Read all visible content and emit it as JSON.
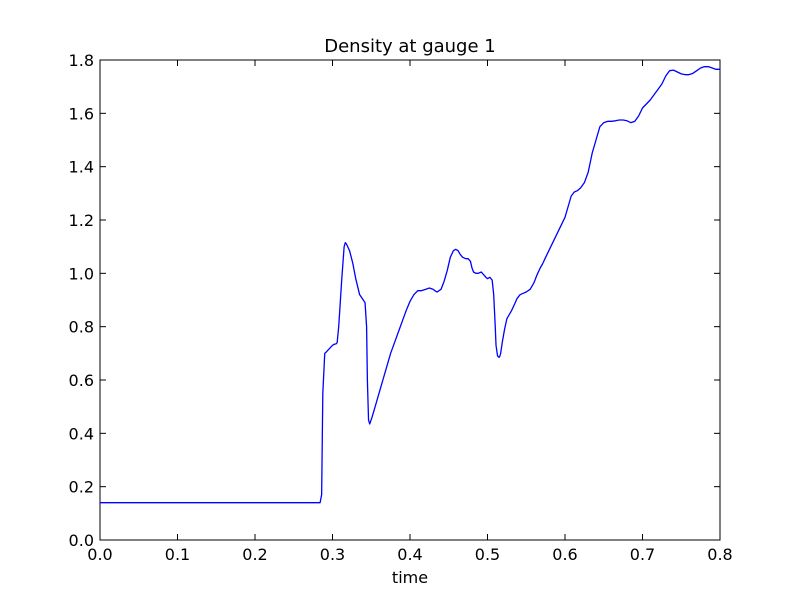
{
  "chart_data": {
    "type": "line",
    "title": "Density at gauge 1",
    "xlabel": "time",
    "ylabel": "",
    "xlim": [
      0.0,
      0.8
    ],
    "ylim": [
      0.0,
      1.8
    ],
    "xticks": [
      "0.0",
      "0.1",
      "0.2",
      "0.3",
      "0.4",
      "0.5",
      "0.6",
      "0.7",
      "0.8"
    ],
    "yticks": [
      "0.0",
      "0.2",
      "0.4",
      "0.6",
      "0.8",
      "1.0",
      "1.2",
      "1.4",
      "1.6",
      "1.8"
    ],
    "grid": false,
    "legend": false,
    "series": [
      {
        "color": "#0000ff",
        "x": [
          0.0,
          0.284,
          0.286,
          0.2875,
          0.29,
          0.292,
          0.2935,
          0.3,
          0.303,
          0.3045,
          0.306,
          0.308,
          0.312,
          0.315,
          0.3165,
          0.318,
          0.322,
          0.326,
          0.33,
          0.335,
          0.342,
          0.344,
          0.345,
          0.3465,
          0.348,
          0.351,
          0.355,
          0.36,
          0.365,
          0.37,
          0.375,
          0.38,
          0.385,
          0.39,
          0.395,
          0.4,
          0.405,
          0.41,
          0.412,
          0.415,
          0.42,
          0.425,
          0.43,
          0.432,
          0.435,
          0.44,
          0.444,
          0.448,
          0.452,
          0.456,
          0.459,
          0.462,
          0.465,
          0.468,
          0.472,
          0.475,
          0.478,
          0.48,
          0.482,
          0.485,
          0.488,
          0.492,
          0.495,
          0.498,
          0.5,
          0.503,
          0.506,
          0.508,
          0.51,
          0.511,
          0.513,
          0.515,
          0.516,
          0.517,
          0.519,
          0.522,
          0.525,
          0.528,
          0.531,
          0.535,
          0.538,
          0.542,
          0.546,
          0.55,
          0.555,
          0.56,
          0.564,
          0.568,
          0.571,
          0.575,
          0.58,
          0.585,
          0.59,
          0.595,
          0.6,
          0.605,
          0.608,
          0.612,
          0.616,
          0.62,
          0.625,
          0.63,
          0.635,
          0.64,
          0.645,
          0.65,
          0.655,
          0.66,
          0.665,
          0.67,
          0.675,
          0.68,
          0.685,
          0.69,
          0.695,
          0.7,
          0.705,
          0.71,
          0.715,
          0.72,
          0.725,
          0.73,
          0.735,
          0.74,
          0.745,
          0.75,
          0.755,
          0.76,
          0.765,
          0.77,
          0.775,
          0.78,
          0.785,
          0.79,
          0.795,
          0.8
        ],
        "y": [
          0.14,
          0.14,
          0.17,
          0.55,
          0.7,
          0.705,
          0.71,
          0.73,
          0.735,
          0.735,
          0.74,
          0.8,
          0.98,
          1.1,
          1.115,
          1.11,
          1.085,
          1.04,
          0.98,
          0.92,
          0.89,
          0.8,
          0.6,
          0.45,
          0.435,
          0.46,
          0.5,
          0.55,
          0.6,
          0.65,
          0.7,
          0.74,
          0.78,
          0.82,
          0.86,
          0.895,
          0.92,
          0.935,
          0.935,
          0.935,
          0.94,
          0.945,
          0.94,
          0.935,
          0.93,
          0.94,
          0.97,
          1.01,
          1.06,
          1.085,
          1.09,
          1.085,
          1.07,
          1.06,
          1.055,
          1.055,
          1.045,
          1.02,
          1.005,
          1.0,
          1.0,
          1.005,
          0.995,
          0.985,
          0.98,
          0.985,
          0.975,
          0.92,
          0.8,
          0.73,
          0.69,
          0.685,
          0.69,
          0.7,
          0.74,
          0.79,
          0.83,
          0.845,
          0.86,
          0.885,
          0.905,
          0.92,
          0.925,
          0.93,
          0.94,
          0.965,
          0.995,
          1.02,
          1.035,
          1.06,
          1.09,
          1.12,
          1.15,
          1.18,
          1.21,
          1.26,
          1.29,
          1.305,
          1.31,
          1.32,
          1.34,
          1.38,
          1.45,
          1.5,
          1.55,
          1.565,
          1.57,
          1.57,
          1.572,
          1.575,
          1.575,
          1.572,
          1.565,
          1.57,
          1.59,
          1.62,
          1.635,
          1.65,
          1.67,
          1.69,
          1.71,
          1.74,
          1.76,
          1.762,
          1.755,
          1.748,
          1.745,
          1.745,
          1.75,
          1.76,
          1.77,
          1.775,
          1.775,
          1.77,
          1.765,
          1.765
        ]
      }
    ]
  }
}
